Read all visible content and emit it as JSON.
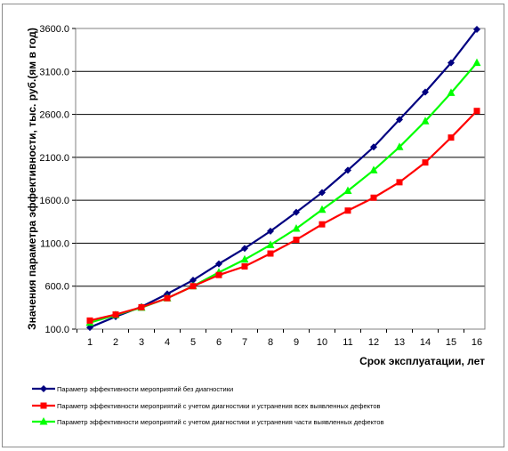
{
  "chart_data": {
    "type": "line",
    "title": "",
    "xlabel": "Срок эксплуатации, лет",
    "ylabel": "Значения параметра эффективности, тыс. руб.(ям в год)",
    "ylim": [
      100,
      3600
    ],
    "yticks": [
      "100.0",
      "600.0",
      "1100.0",
      "1600.0",
      "2100.0",
      "2600.0",
      "3100.0",
      "3600.0"
    ],
    "grid": "horizontal",
    "legend": "bottom",
    "categories": [
      "1",
      "2",
      "3",
      "4",
      "5",
      "6",
      "7",
      "8",
      "9",
      "10",
      "11",
      "12",
      "13",
      "14",
      "15",
      "16"
    ],
    "series": [
      {
        "name": "Параметр эффективности мероприятий без диагностики",
        "color": "#000080",
        "marker": "diamond",
        "values": [
          120,
          245,
          360,
          510,
          670,
          860,
          1040,
          1240,
          1460,
          1690,
          1950,
          2220,
          2540,
          2860,
          3200,
          3590
        ]
      },
      {
        "name": "Параметр эффективности мероприятий с учетом диагностики и устранения всех выявленных дефектов",
        "color": "#ff0000",
        "marker": "square",
        "values": [
          200,
          270,
          355,
          460,
          600,
          730,
          830,
          980,
          1140,
          1320,
          1480,
          1630,
          1810,
          2040,
          2330,
          2640
        ]
      },
      {
        "name": "Параметр эффективности мероприятий с учетом диагностики и устранения части выявленных дефектов",
        "color": "#00ff00",
        "marker": "triangle",
        "values": [
          175,
          265,
          350,
          460,
          600,
          760,
          910,
          1080,
          1270,
          1490,
          1710,
          1950,
          2220,
          2520,
          2850,
          3200
        ]
      }
    ]
  }
}
